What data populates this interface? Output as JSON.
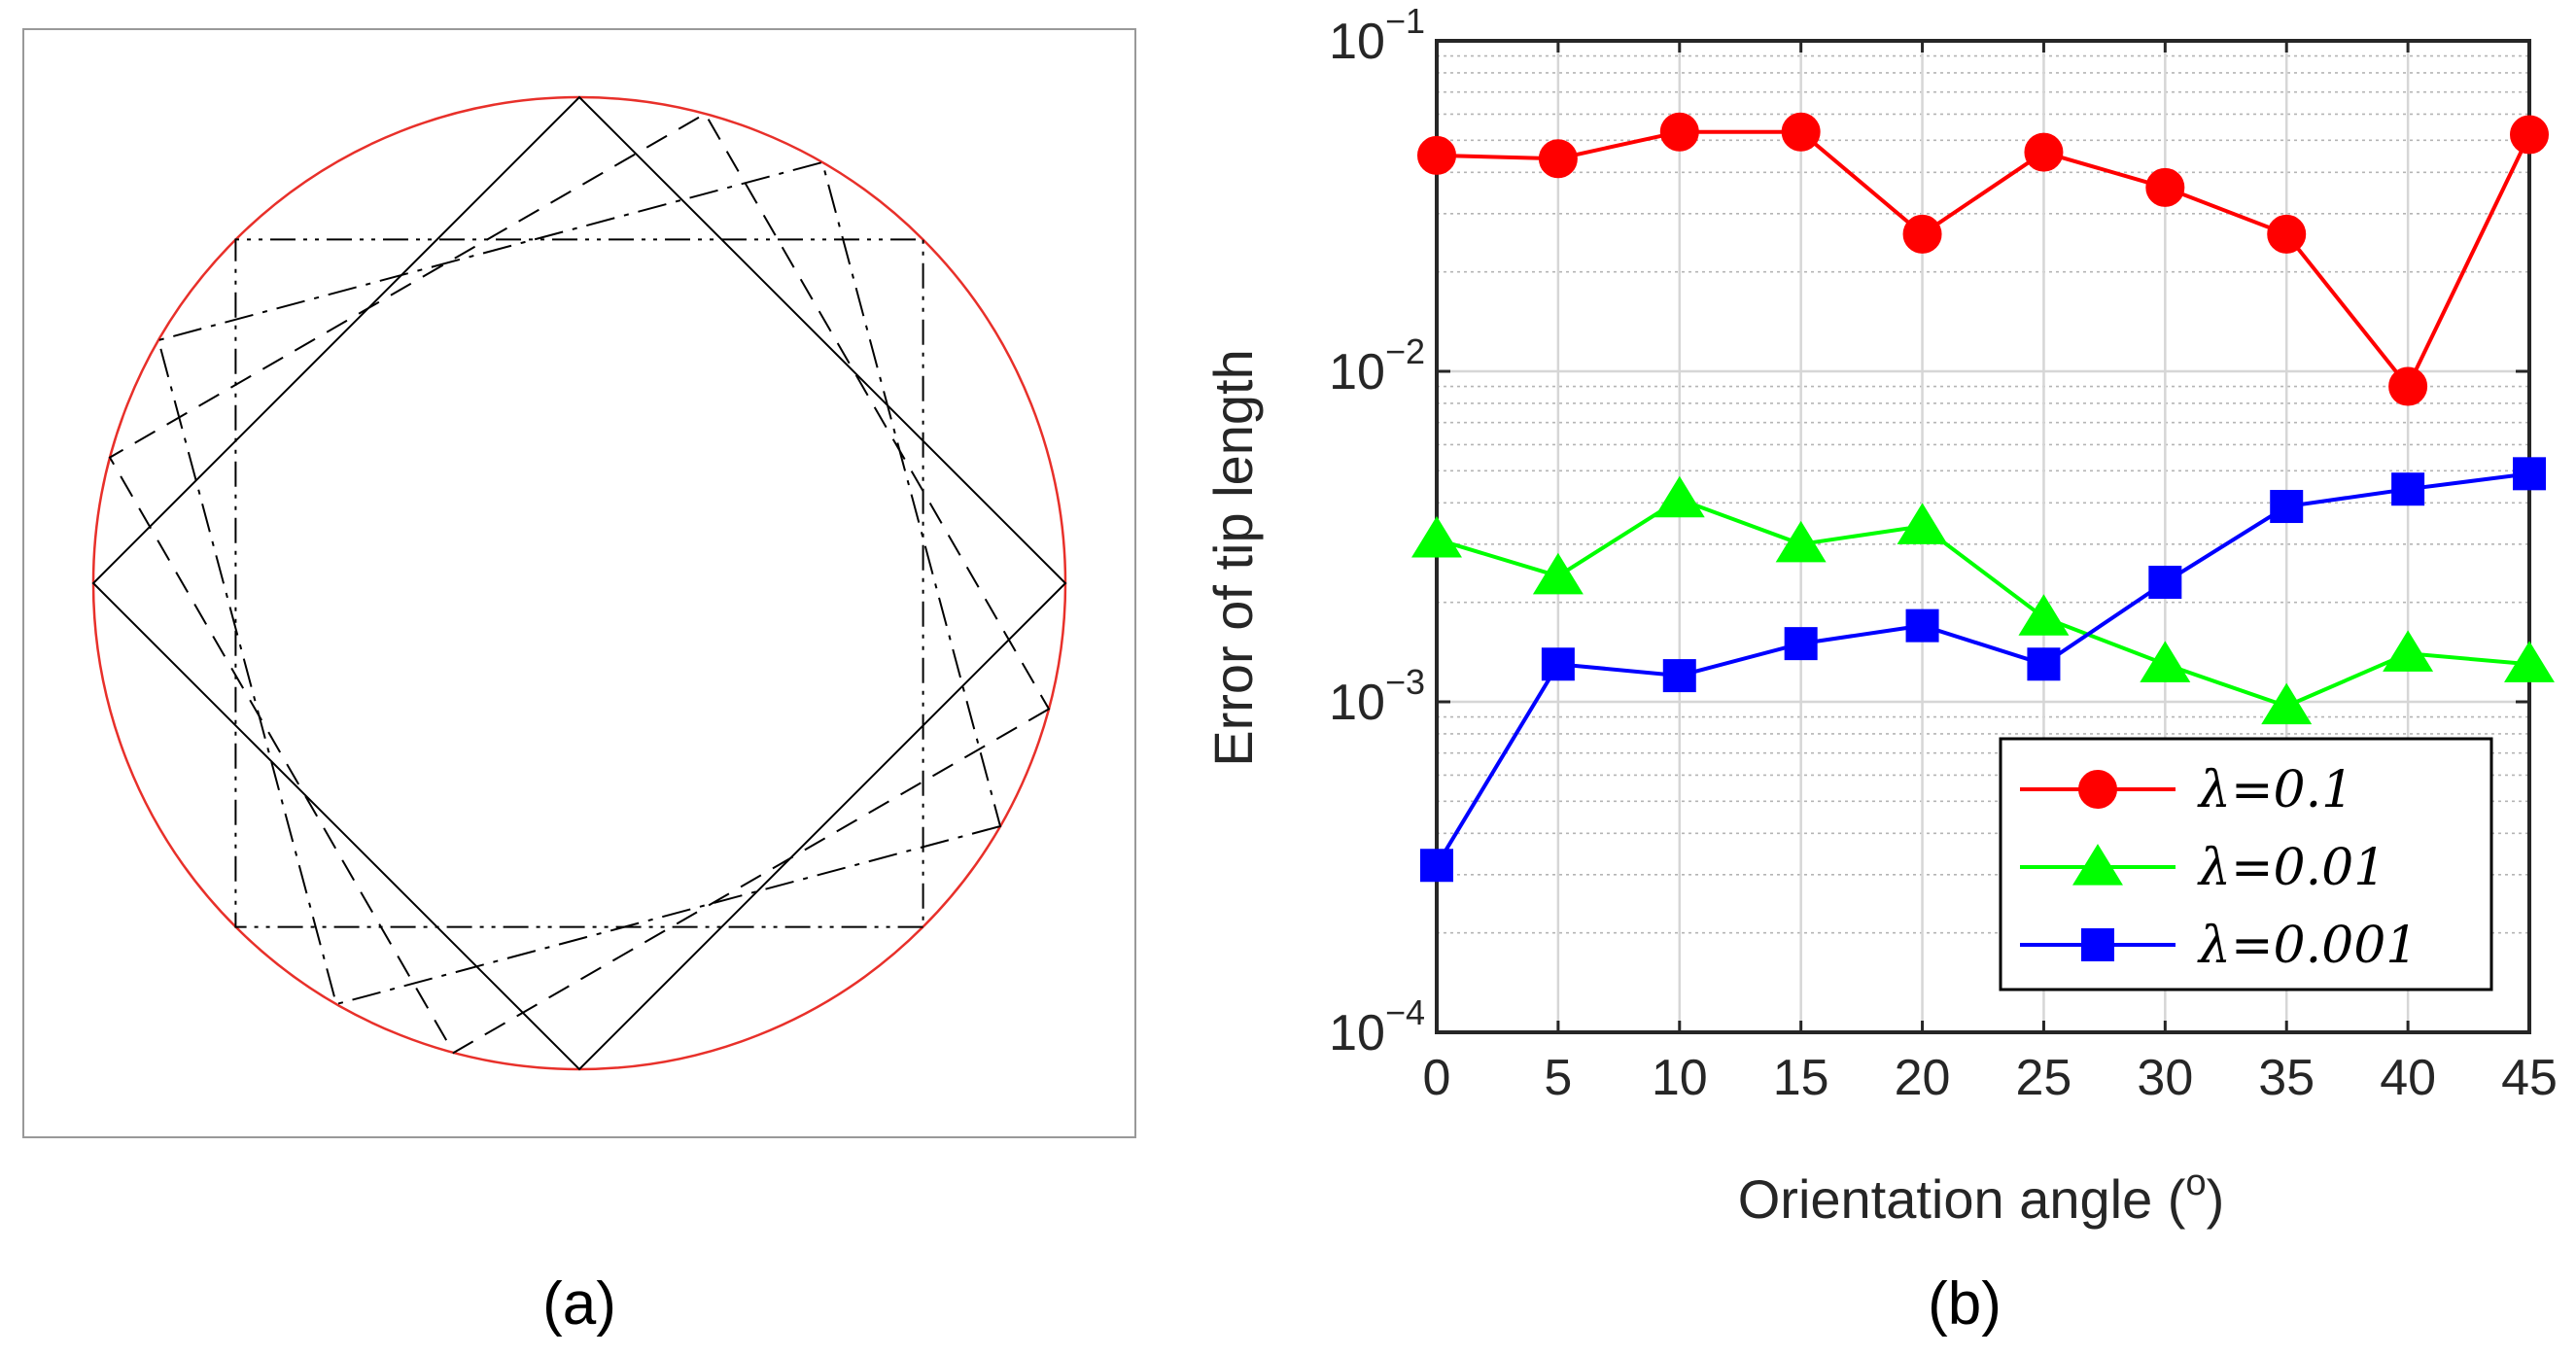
{
  "panel_a": {
    "label": "(a)",
    "shapes": [
      {
        "name": "circumscribed-circle",
        "stroke": "#e8302a"
      },
      {
        "name": "square-0deg",
        "style": "dash-dot-dot",
        "rotation_deg": 0
      },
      {
        "name": "square-15deg",
        "style": "dash-dot",
        "rotation_deg": 15
      },
      {
        "name": "square-30deg",
        "style": "dashed",
        "rotation_deg": 30
      },
      {
        "name": "square-45deg",
        "style": "solid",
        "rotation_deg": 45
      }
    ]
  },
  "panel_b": {
    "label": "(b)"
  },
  "chart_data": {
    "type": "line",
    "title": "",
    "xlabel": "Orientation angle (",
    "xlabel_sup": "o",
    "xlabel_end": ")",
    "ylabel": "Error of tip length",
    "yscale": "log",
    "ylim": [
      0.0001,
      0.1
    ],
    "xlim": [
      0,
      45
    ],
    "grid": true,
    "legend_position": "bottom-right",
    "x": [
      0,
      5,
      10,
      15,
      20,
      25,
      30,
      35,
      40,
      45
    ],
    "x_tick_labels": [
      "0",
      "5",
      "10",
      "15",
      "20",
      "25",
      "30",
      "35",
      "40",
      "45"
    ],
    "y_ticks": [
      {
        "value": 0.1,
        "base": "10",
        "exp": "−1"
      },
      {
        "value": 0.01,
        "base": "10",
        "exp": "−2"
      },
      {
        "value": 0.001,
        "base": "10",
        "exp": "−3"
      },
      {
        "value": 0.0001,
        "base": "10",
        "exp": "−4"
      }
    ],
    "series": [
      {
        "name": "λ=0.1",
        "color": "#ff0000",
        "marker": "circle",
        "values": [
          0.045,
          0.044,
          0.053,
          0.053,
          0.026,
          0.046,
          0.036,
          0.026,
          0.009,
          0.052
        ]
      },
      {
        "name": "λ=0.01",
        "color": "#00ff00",
        "marker": "triangle",
        "values": [
          0.0031,
          0.0024,
          0.0041,
          0.003,
          0.0034,
          0.0018,
          0.0013,
          0.00097,
          0.0014,
          0.0013
        ]
      },
      {
        "name": "λ=0.001",
        "color": "#0000ff",
        "marker": "square",
        "values": [
          0.00032,
          0.0013,
          0.0012,
          0.0015,
          0.0017,
          0.0013,
          0.0023,
          0.0039,
          0.0044,
          0.0049
        ]
      }
    ]
  }
}
